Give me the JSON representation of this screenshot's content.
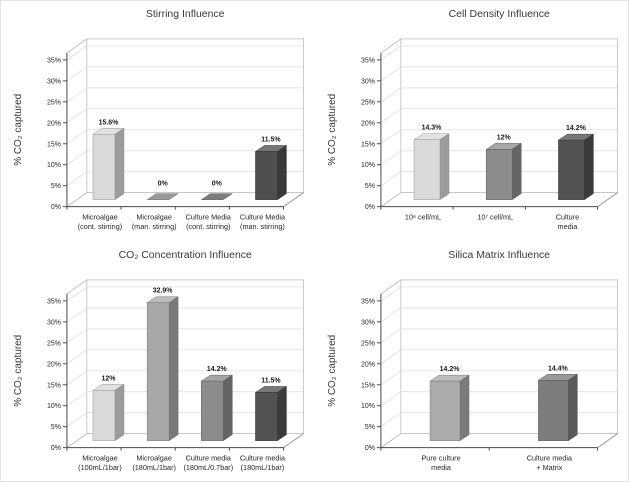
{
  "figure": {
    "name": "CO2 capture influence factor charts",
    "background": "#ffffff",
    "frame_color": "#b3b3b3",
    "gridline_color": "#d9d9d9",
    "axis_color": "#4d4d4d",
    "text_color": "#262626"
  },
  "chart_data": [
    {
      "type": "bar",
      "style": "3d-column",
      "title": "Stirring Influence",
      "xlabel": "",
      "ylabel": "% CO₂ captured",
      "ylim": [
        0,
        35
      ],
      "ytick_step": 5,
      "ytick_labels": [
        "0%",
        "5%",
        "10%",
        "15%",
        "20%",
        "25%",
        "30%",
        "35%"
      ],
      "grid": true,
      "legend": false,
      "categories": [
        [
          "Microalgae",
          "(cont. stirring)"
        ],
        [
          "Microalgae",
          "(man. stirring)"
        ],
        [
          "Culture Media",
          "(cont. stirring)"
        ],
        [
          "Culture Media",
          "(man. stirring)"
        ]
      ],
      "values": [
        15.6,
        0,
        0,
        11.5
      ],
      "value_labels": [
        "15.6%",
        "0%",
        "0%",
        "11.5%"
      ],
      "bar_colors": [
        "#d9d9d9",
        "#999999",
        "#7d7d7d",
        "#4f4f4f"
      ]
    },
    {
      "type": "bar",
      "style": "3d-column",
      "title": "Cell Density Influence",
      "xlabel": "",
      "ylabel": "% CO₂ captured",
      "ylim": [
        0,
        35
      ],
      "ytick_step": 5,
      "ytick_labels": [
        "0%",
        "5%",
        "10%",
        "15%",
        "20%",
        "25%",
        "30%",
        "35%"
      ],
      "grid": true,
      "legend": false,
      "categories": [
        [
          "10⁶ cell/mL"
        ],
        [
          "10⁷ cell/mL"
        ],
        [
          "Culture",
          "media"
        ]
      ],
      "values": [
        14.3,
        12,
        14.2
      ],
      "value_labels": [
        "14.3%",
        "12%",
        "14.2%"
      ],
      "bar_colors": [
        "#d9d9d9",
        "#8c8c8c",
        "#525252"
      ]
    },
    {
      "type": "bar",
      "style": "3d-column",
      "title": "CO₂ Concentration Influence",
      "xlabel": "",
      "ylabel": "% CO₂ captured",
      "ylim": [
        0,
        35
      ],
      "ytick_step": 5,
      "ytick_labels": [
        "0%",
        "5%",
        "10%",
        "15%",
        "20%",
        "25%",
        "30%",
        "35%"
      ],
      "grid": true,
      "legend": false,
      "categories": [
        [
          "Microalgae",
          "(100mL/1bar)"
        ],
        [
          "Microalgae",
          "(180mL/1bar)"
        ],
        [
          "Culture media",
          "(180mL/0.7bar)"
        ],
        [
          "Culture media",
          "(180mL/1bar)"
        ]
      ],
      "values": [
        12,
        32.9,
        14.2,
        11.5
      ],
      "value_labels": [
        "12%",
        "32.9%",
        "14.2%",
        "11.5%"
      ],
      "bar_colors": [
        "#d9d9d9",
        "#a8a8a8",
        "#8c8c8c",
        "#525252"
      ]
    },
    {
      "type": "bar",
      "style": "3d-column",
      "title": "Silica Matrix Influence",
      "xlabel": "",
      "ylabel": "% CO₂ captured",
      "ylim": [
        0,
        35
      ],
      "ytick_step": 5,
      "ytick_labels": [
        "0%",
        "5%",
        "10%",
        "15%",
        "20%",
        "25%",
        "30%",
        "35%"
      ],
      "grid": true,
      "legend": false,
      "categories": [
        [
          "Pure culture",
          "media"
        ],
        [
          "Culture media",
          "+ Matrix"
        ]
      ],
      "values": [
        14.2,
        14.4
      ],
      "value_labels": [
        "14.2%",
        "14.4%"
      ],
      "bar_colors": [
        "#ababab",
        "#7d7d7d"
      ]
    }
  ]
}
